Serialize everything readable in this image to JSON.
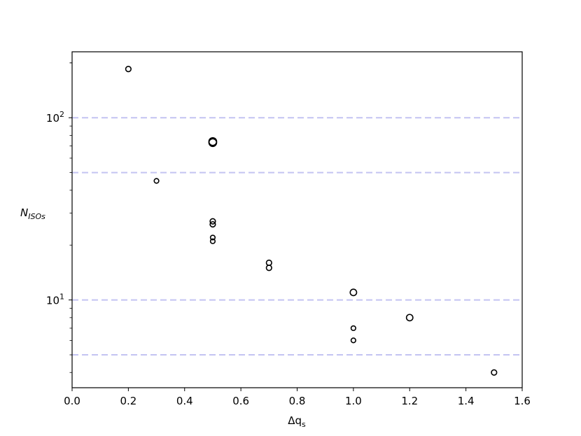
{
  "chart_data": {
    "type": "scatter",
    "xlabel": {
      "base": "Δq",
      "sub": "s"
    },
    "ylabel": {
      "base": "N",
      "sub": "ISOs"
    },
    "xlim": [
      0.0,
      1.6
    ],
    "ylim": [
      3.3,
      230
    ],
    "yscale": "log",
    "grid": false,
    "xticks": [
      {
        "value": 0.0,
        "label": "0.0"
      },
      {
        "value": 0.2,
        "label": "0.2"
      },
      {
        "value": 0.4,
        "label": "0.4"
      },
      {
        "value": 0.6,
        "label": "0.6"
      },
      {
        "value": 0.8,
        "label": "0.8"
      },
      {
        "value": 1.0,
        "label": "1.0"
      },
      {
        "value": 1.2,
        "label": "1.2"
      },
      {
        "value": 1.4,
        "label": "1.4"
      },
      {
        "value": 1.6,
        "label": "1.6"
      }
    ],
    "yticks_major": [
      {
        "value": 10,
        "base": "10",
        "exp": "1"
      },
      {
        "value": 100,
        "base": "10",
        "exp": "2"
      }
    ],
    "reference_lines": {
      "y": [
        5,
        10,
        50,
        100
      ],
      "color": "#c4c4f2",
      "style": "dashed"
    },
    "marker": {
      "shape": "open-circle",
      "stroke": "#000000"
    },
    "points": [
      {
        "x": 0.2,
        "y": 185,
        "size": "small"
      },
      {
        "x": 0.3,
        "y": 45,
        "size": "tiny"
      },
      {
        "x": 0.5,
        "y": 74,
        "size": "large"
      },
      {
        "x": 0.5,
        "y": 73,
        "size": "large"
      },
      {
        "x": 0.5,
        "y": 27,
        "size": "small"
      },
      {
        "x": 0.5,
        "y": 26,
        "size": "small"
      },
      {
        "x": 0.5,
        "y": 22,
        "size": "tiny"
      },
      {
        "x": 0.5,
        "y": 21,
        "size": "tiny"
      },
      {
        "x": 0.7,
        "y": 16,
        "size": "small"
      },
      {
        "x": 0.7,
        "y": 15,
        "size": "small"
      },
      {
        "x": 1.0,
        "y": 11,
        "size": "medium"
      },
      {
        "x": 1.0,
        "y": 7,
        "size": "tiny"
      },
      {
        "x": 1.0,
        "y": 6,
        "size": "tiny"
      },
      {
        "x": 1.2,
        "y": 8,
        "size": "medium"
      },
      {
        "x": 1.5,
        "y": 4,
        "size": "small"
      }
    ]
  }
}
